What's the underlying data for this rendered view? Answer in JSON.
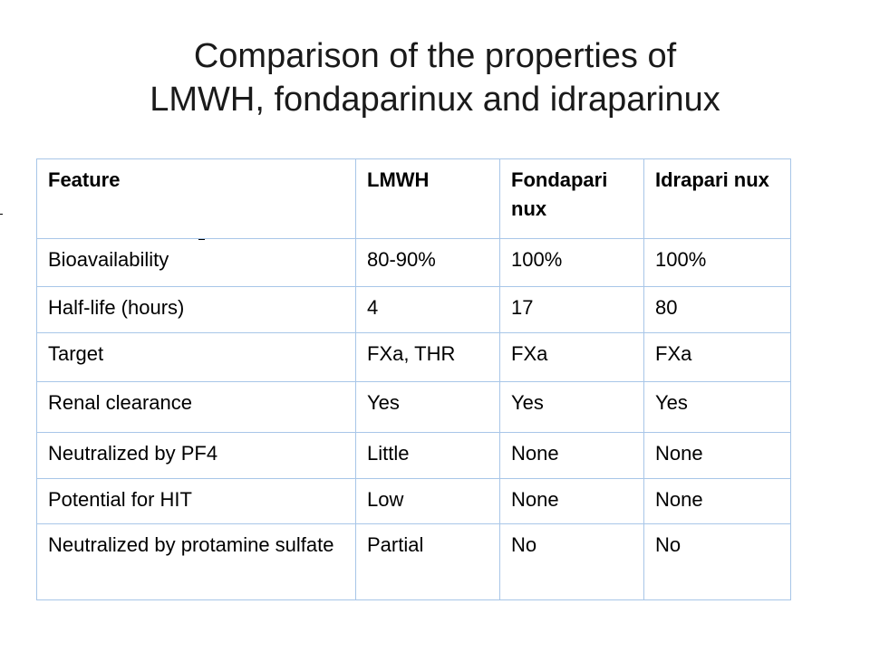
{
  "title": {
    "line1": "Comparison of the properties of",
    "line2": "LMWH, fondaparinux and idraparinux"
  },
  "table": {
    "headers": [
      "Feature",
      "LMWH",
      "Fondapari nux",
      "Idrapari nux"
    ],
    "rows": [
      [
        "Bioavailability",
        "80-90%",
        "100%",
        "100%"
      ],
      [
        "Half-life (hours)",
        "4",
        "17",
        "80"
      ],
      [
        "Target",
        "FXa, THR",
        "FXa",
        "FXa"
      ],
      [
        "Renal clearance",
        "Yes",
        "Yes",
        "Yes"
      ],
      [
        "Neutralized by PF4",
        "Little",
        "None",
        "None"
      ],
      [
        "Potential for HIT",
        "Low",
        "None",
        "None"
      ],
      [
        "Neutralized by protamine sulfate",
        "Partial",
        "No",
        "No"
      ]
    ]
  },
  "colors": {
    "border": "#a8c6e8",
    "title_text": "#1a1a1a",
    "text": "#000000"
  }
}
